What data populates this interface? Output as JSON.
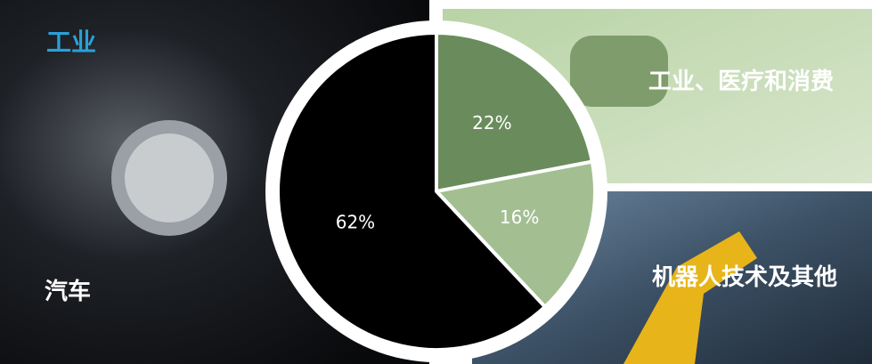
{
  "chart_data": {
    "type": "pie",
    "title": "工业",
    "categories": [
      "汽车",
      "工业、医疗和消费",
      "机器人技术及其他"
    ],
    "values": [
      62,
      22,
      16
    ],
    "value_labels": [
      "62%",
      "22%",
      "16%"
    ],
    "colors": [
      "#000000",
      "#6a8c5c",
      "#a3bf92"
    ]
  }
}
